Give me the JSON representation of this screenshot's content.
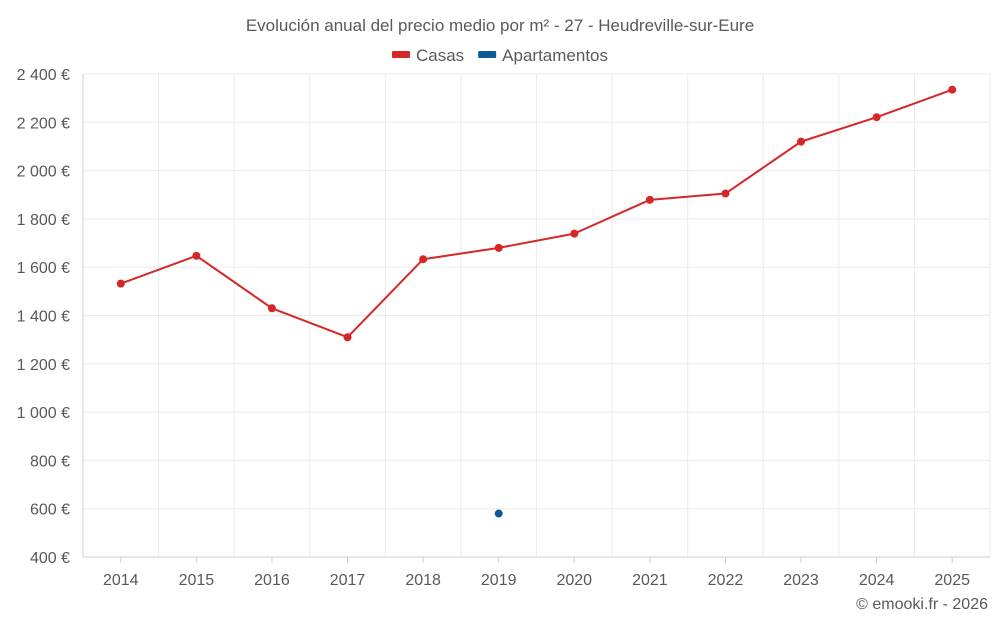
{
  "chart_data": {
    "type": "line",
    "title": "Evolución anual del precio medio por m² - 27 - Heudreville-sur-Eure",
    "categories": [
      "2014",
      "2015",
      "2016",
      "2017",
      "2018",
      "2019",
      "2020",
      "2021",
      "2022",
      "2023",
      "2024",
      "2025"
    ],
    "series": [
      {
        "name": "Casas",
        "color": "#d62728",
        "values": [
          1532,
          1647,
          1430,
          1310,
          1633,
          1680,
          1739,
          1879,
          1905,
          2120,
          2221,
          2335
        ]
      },
      {
        "name": "Apartamentos",
        "color": "#0b5c94",
        "values": [
          null,
          null,
          null,
          null,
          null,
          580,
          null,
          null,
          null,
          null,
          null,
          null
        ]
      }
    ],
    "ylim": [
      400,
      2400
    ],
    "yticks": [
      400,
      600,
      800,
      1000,
      1200,
      1400,
      1600,
      1800,
      2000,
      2200,
      2400
    ],
    "ytick_labels": [
      "400 €",
      "600 €",
      "800 €",
      "1 000 €",
      "1 200 €",
      "1 400 €",
      "1 600 €",
      "1 800 €",
      "2 000 €",
      "2 200 €",
      "2 400 €"
    ],
    "grid": true,
    "legend": "top-center",
    "xlabel": "",
    "ylabel": ""
  },
  "credit": "© emooki.fr - 2026"
}
